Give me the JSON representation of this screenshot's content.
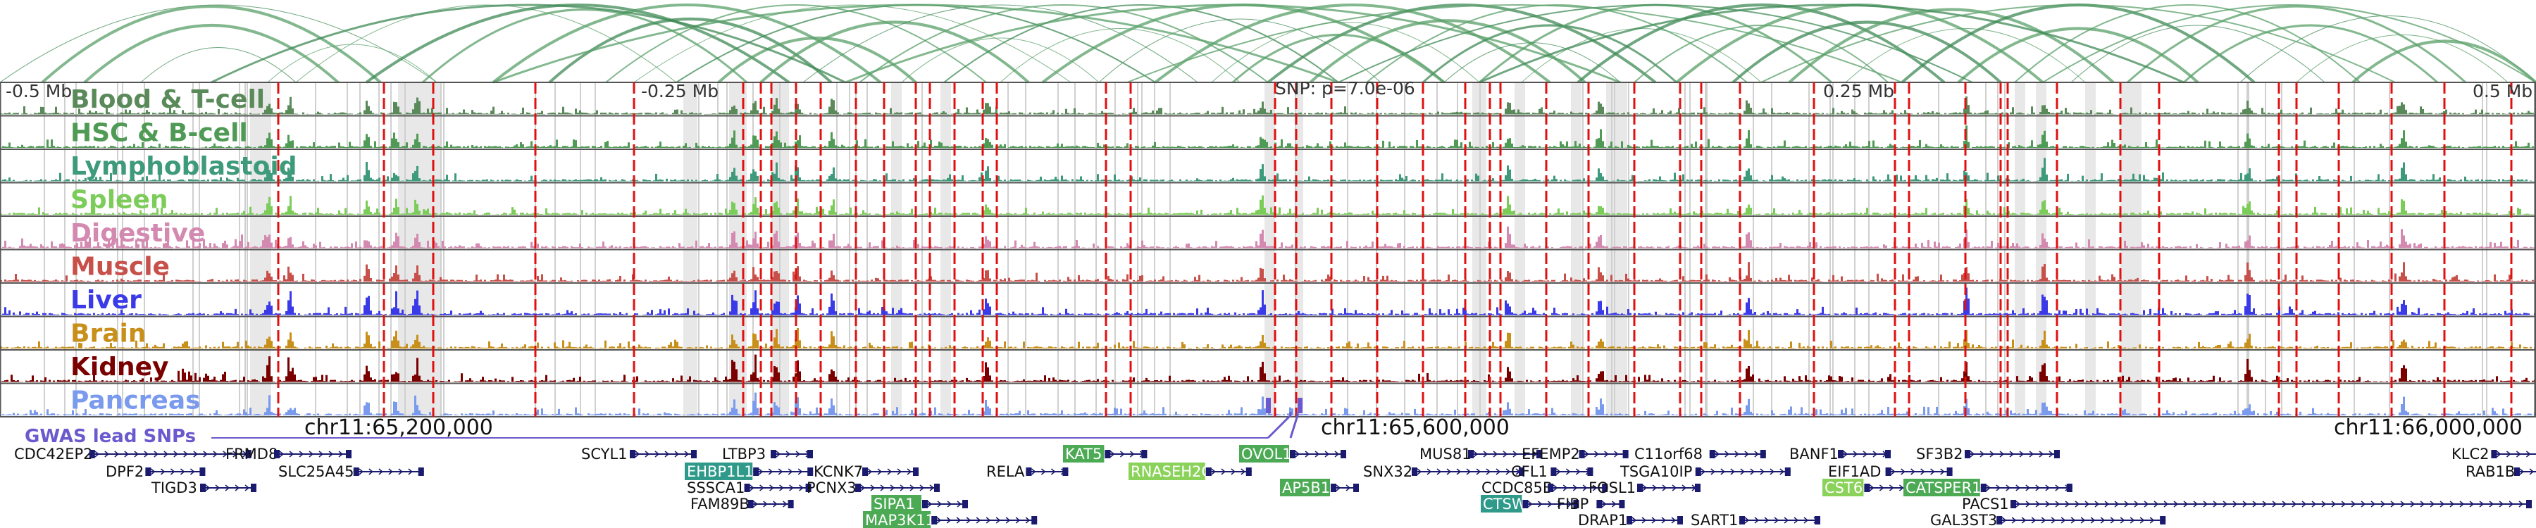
{
  "browser": {
    "region_ticks": [
      "-0.5 Mb",
      "-0.25 Mb",
      "0.25 Mb",
      "0.5 Mb"
    ],
    "snp_label": "SNP: p=7.0e-06",
    "gwas_label": "GWAS lead SNPs",
    "chromosome_ticks": [
      "chr11:65,200,000",
      "chr11:65,600,000",
      "chr11:66,000,000"
    ]
  },
  "tracks": [
    {
      "name": "Blood & T-cell",
      "color": "#5a8a5a"
    },
    {
      "name": "HSC & B-cell",
      "color": "#4f9a55"
    },
    {
      "name": "Lymphoblastoid",
      "color": "#3d9a7a"
    },
    {
      "name": "Spleen",
      "color": "#7ccc5a"
    },
    {
      "name": "Digestive",
      "color": "#d48ab0"
    },
    {
      "name": "Muscle",
      "color": "#c8504a"
    },
    {
      "name": "Liver",
      "color": "#3a3ae8"
    },
    {
      "name": "Brain",
      "color": "#c8901a"
    },
    {
      "name": "Kidney",
      "color": "#7a0000"
    },
    {
      "name": "Pancreas",
      "color": "#7a9aee"
    }
  ],
  "genes": [
    {
      "name": "CDC42EP2",
      "highlight": ""
    },
    {
      "name": "DPF2",
      "highlight": ""
    },
    {
      "name": "TIGD3",
      "highlight": ""
    },
    {
      "name": "FRMD8",
      "highlight": ""
    },
    {
      "name": "SLC25A45",
      "highlight": ""
    },
    {
      "name": "SCYL1",
      "highlight": ""
    },
    {
      "name": "LTBP3",
      "highlight": ""
    },
    {
      "name": "EHBP1L1",
      "highlight": "teal"
    },
    {
      "name": "SSSCA1",
      "highlight": ""
    },
    {
      "name": "FAM89B",
      "highlight": ""
    },
    {
      "name": "KCNK7",
      "highlight": ""
    },
    {
      "name": "PCNX3",
      "highlight": ""
    },
    {
      "name": "SIPA1",
      "highlight": "green"
    },
    {
      "name": "MAP3K11",
      "highlight": "green"
    },
    {
      "name": "RELA",
      "highlight": ""
    },
    {
      "name": "KAT5",
      "highlight": "green"
    },
    {
      "name": "RNASEH2C",
      "highlight": "lightgreen"
    },
    {
      "name": "OVOL1",
      "highlight": "green"
    },
    {
      "name": "AP5B1",
      "highlight": "green"
    },
    {
      "name": "SNX32",
      "highlight": ""
    },
    {
      "name": "MUS81",
      "highlight": ""
    },
    {
      "name": "EFEMP2",
      "highlight": ""
    },
    {
      "name": "CFL1",
      "highlight": ""
    },
    {
      "name": "CCDC85B",
      "highlight": ""
    },
    {
      "name": "FOSL1",
      "highlight": ""
    },
    {
      "name": "CTSW",
      "highlight": "teal"
    },
    {
      "name": "FIBP",
      "highlight": ""
    },
    {
      "name": "DRAP1",
      "highlight": ""
    },
    {
      "name": "C11orf68",
      "highlight": ""
    },
    {
      "name": "TSGA10IP",
      "highlight": ""
    },
    {
      "name": "SART1",
      "highlight": ""
    },
    {
      "name": "BANF1",
      "highlight": ""
    },
    {
      "name": "EIF1AD",
      "highlight": ""
    },
    {
      "name": "CST6",
      "highlight": "lightgreen"
    },
    {
      "name": "SF3B2",
      "highlight": ""
    },
    {
      "name": "CATSPER1",
      "highlight": "green"
    },
    {
      "name": "PACS1",
      "highlight": ""
    },
    {
      "name": "GAL3ST3",
      "highlight": ""
    },
    {
      "name": "KLC2",
      "highlight": ""
    },
    {
      "name": "RAB1B",
      "highlight": ""
    }
  ]
}
